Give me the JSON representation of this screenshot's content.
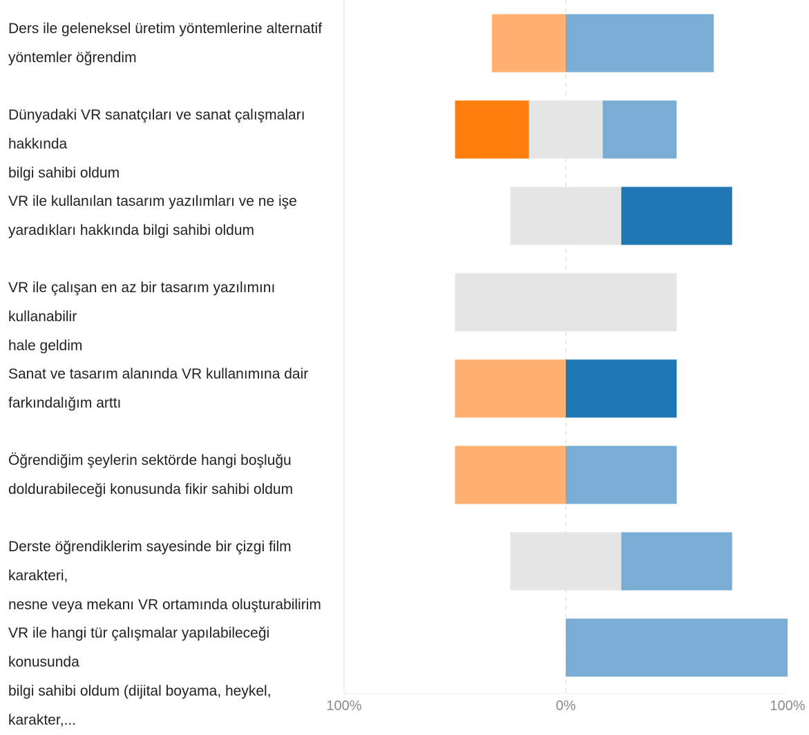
{
  "chart_data": {
    "type": "bar",
    "stacked": "diverging",
    "orientation": "horizontal",
    "categories": [
      "Ders ile geleneksel üretim yöntemlerine alternatif\nyöntemler öğrendim",
      "Dünyadaki VR sanatçıları ve sanat çalışmaları hakkında\nbilgi sahibi oldum",
      "VR ile kullanılan tasarım yazılımları ve ne işe\nyaradıkları hakkında bilgi sahibi oldum",
      "VR ile çalışan en az bir tasarım yazılımını kullanabilir\nhale geldim",
      "Sanat ve tasarım alanında VR kullanımına dair\nfarkındalığım arttı",
      "Öğrendiğim şeylerin sektörde hangi boşluğu\ndoldurabileceği konusunda fikir sahibi oldum",
      "Derste öğrendiklerim sayesinde bir çizgi film karakteri,\nnesne veya mekanı VR ortamında oluşturabilirim",
      "VR ile hangi tür çalışmalar yapılabileceği konusunda\nbilgi sahibi oldum (dijital boyama, heykel, karakter,..."
    ],
    "series": [
      {
        "values": [
          0,
          33.3,
          0,
          0,
          0,
          0,
          0,
          0
        ],
        "color": "#ff7f0e"
      },
      {
        "values": [
          33.3,
          0,
          0,
          0,
          50,
          50,
          0,
          0
        ],
        "color": "#ffb070"
      },
      {
        "values": [
          0,
          33.3,
          50,
          100,
          0,
          0,
          50,
          0
        ],
        "color": "#e5e5e5"
      },
      {
        "values": [
          66.7,
          33.3,
          0,
          0,
          0,
          50,
          50,
          100
        ],
        "color": "#7aadd3"
      },
      {
        "values": [
          0,
          0,
          50,
          0,
          50,
          0,
          0,
          0
        ],
        "color": "#1f77b4"
      }
    ],
    "xlim": [
      -100,
      100
    ],
    "x_tick_labels": [
      "100%",
      "0%",
      "100%"
    ],
    "grid": false
  }
}
